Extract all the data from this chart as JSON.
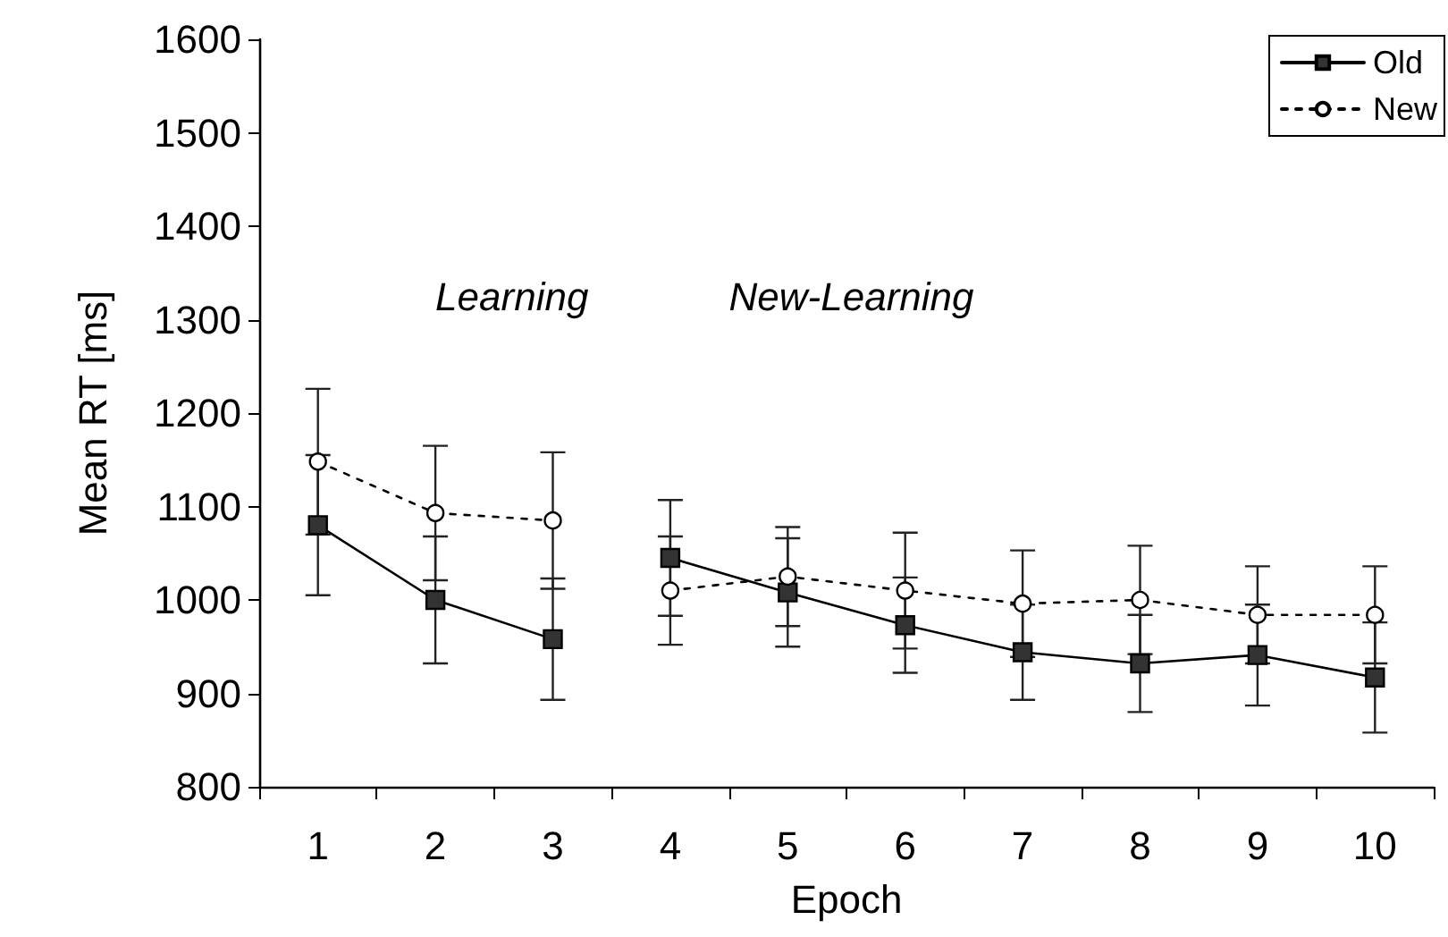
{
  "chart_data": {
    "type": "line",
    "xlabel": "Epoch",
    "ylabel": "Mean RT [ms]",
    "categories": [
      "1",
      "2",
      "3",
      "4",
      "5",
      "6",
      "7",
      "8",
      "9",
      "10"
    ],
    "series": [
      {
        "name": "Old",
        "color": "#000000",
        "marker": "square",
        "line_style": "solid",
        "values": [
          1080,
          1000,
          958,
          1045,
          1008,
          973,
          944,
          932,
          941,
          917
        ],
        "errors": [
          75,
          68,
          65,
          62,
          58,
          51,
          51,
          52,
          54,
          59
        ]
      },
      {
        "name": "New",
        "color": "#000000",
        "marker": "circle",
        "line_style": "dotted",
        "values": [
          1148,
          1093,
          1085,
          1010,
          1025,
          1010,
          996,
          1000,
          984,
          984
        ],
        "errors": [
          78,
          72,
          73,
          58,
          53,
          62,
          57,
          58,
          52,
          52
        ]
      }
    ],
    "ylim": [
      800,
      1600
    ],
    "yticks": [
      800,
      900,
      1000,
      1100,
      1200,
      1300,
      1400,
      1500,
      1600
    ],
    "grid": false,
    "legend": "top right",
    "annotations": [
      "Learning",
      "New-Learning"
    ]
  }
}
